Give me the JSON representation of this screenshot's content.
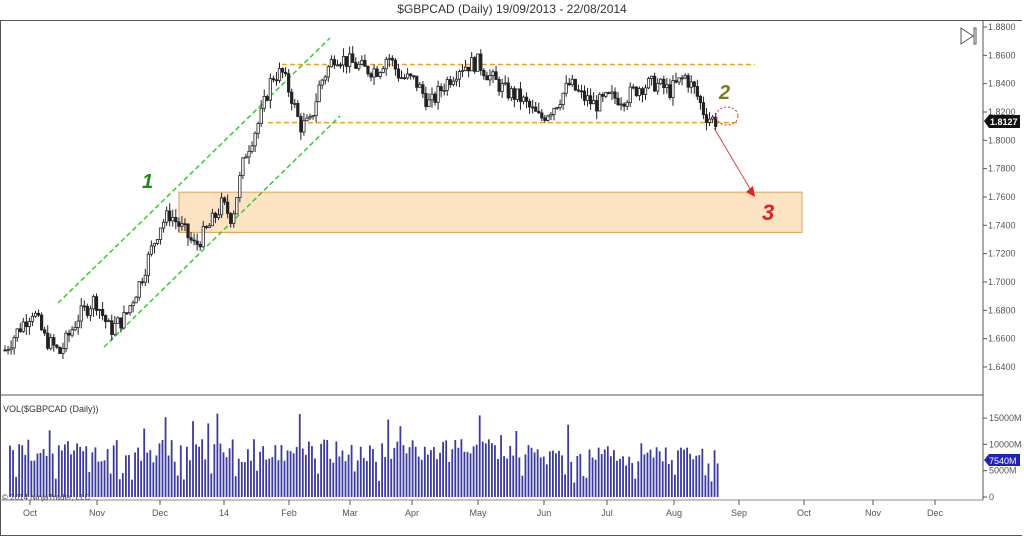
{
  "title": "$GBPCAD (Daily)  19/09/2013 - 22/08/2014",
  "price_axis": {
    "ticks": [
      "1.8800",
      "1.8600",
      "1.8400",
      "1.8200",
      "1.8000",
      "1.7800",
      "1.7600",
      "1.7400",
      "1.7200",
      "1.7000",
      "1.6800",
      "1.6600",
      "1.6400"
    ],
    "current_price": "1.8127"
  },
  "volume_panel": {
    "label": "VOL($GBPCAD (Daily))",
    "ticks": [
      "15000M",
      "10000M",
      "5000M",
      "0"
    ],
    "current_volume": "7540M",
    "copyright": "© 2014 NinjaTrader, LLC"
  },
  "time_axis": {
    "labels": [
      "Oct",
      "Nov",
      "Dec",
      "14",
      "Feb",
      "Mar",
      "Apr",
      "May",
      "Jun",
      "Jul",
      "Aug",
      "Sep",
      "Oct",
      "Nov",
      "Dec"
    ]
  },
  "annotations": {
    "label_1": "1",
    "label_2": "2",
    "label_3": "3"
  },
  "colors": {
    "candle": "#222222",
    "channel": "#33cc33",
    "range_line": "#e8a030",
    "zone_fill": "#fbd9b0",
    "zone_border": "#e0a050",
    "volume_bar": "#3a3aa0",
    "arrow": "#dd2222",
    "label_1": "#1a8a1a",
    "label_2": "#7a7a20",
    "label_3": "#dd2222"
  },
  "chart_data": {
    "type": "candlestick",
    "title": "$GBPCAD (Daily)  19/09/2013 - 22/08/2014",
    "xlabel": "",
    "ylabel": "",
    "ylim": [
      1.63,
      1.885
    ],
    "x": [
      "Oct 2013",
      "Nov 2013",
      "Dec 2013",
      "Jan 2014",
      "Feb 2014",
      "Mar 2014",
      "Apr 2014",
      "May 2014",
      "Jun 2014",
      "Jul 2014",
      "Aug 2014"
    ],
    "approx_close": [
      1.665,
      1.665,
      1.745,
      1.76,
      1.815,
      1.855,
      1.83,
      1.855,
      1.82,
      1.835,
      1.8127
    ],
    "last_price": 1.8127,
    "range_resistance": 1.8535,
    "range_support": 1.8125,
    "demand_zone": [
      1.735,
      1.762
    ],
    "uptrend_channel": "1",
    "volume": {
      "unit": "M",
      "ylim": [
        0,
        19000
      ],
      "typical_range": [
        5000,
        11000
      ],
      "last": 7540
    },
    "annotations": [
      "1: rising channel",
      "2: breakdown at range support",
      "3: target demand zone ~1.735-1.762"
    ],
    "grid": false
  }
}
